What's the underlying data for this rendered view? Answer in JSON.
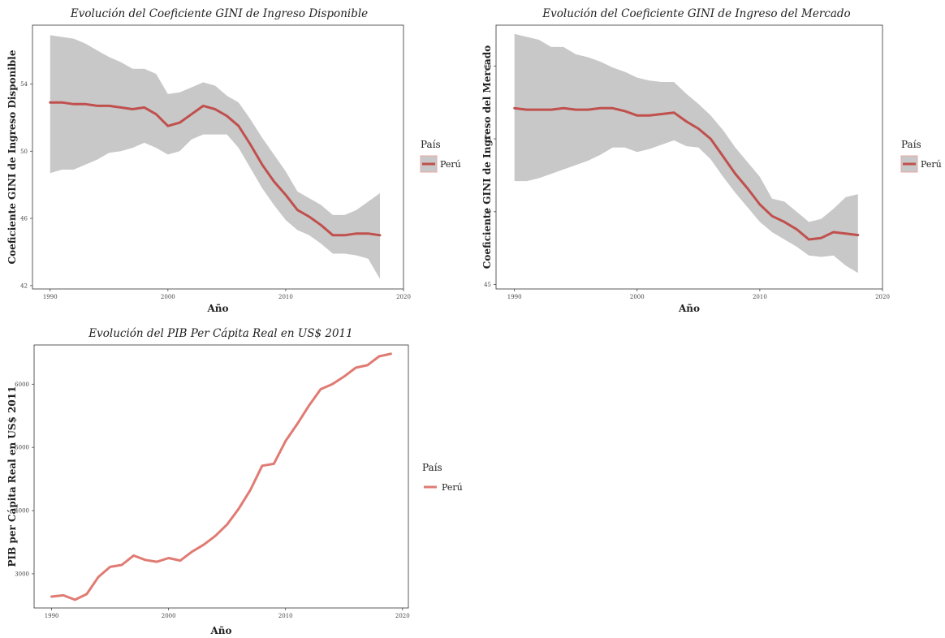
{
  "chart_data": [
    {
      "type": "area",
      "title": "Evolución del Coeficiente GINI de Ingreso Disponible",
      "xlabel": "Año",
      "ylabel": "Coeficiente GINI de Ingreso Disponible",
      "xlim": [
        1988.5,
        2020
      ],
      "ylim": [
        41.8,
        57.5
      ],
      "xticks": [
        1990,
        2000,
        2010,
        2020
      ],
      "yticks": [
        42,
        46,
        50,
        54
      ],
      "grid": false,
      "legend": {
        "title": "País",
        "position": "right"
      },
      "x": [
        1990,
        1991,
        1992,
        1993,
        1994,
        1995,
        1996,
        1997,
        1998,
        1999,
        2000,
        2001,
        2002,
        2003,
        2004,
        2005,
        2006,
        2007,
        2008,
        2009,
        2010,
        2011,
        2012,
        2013,
        2014,
        2015,
        2016,
        2017,
        2018
      ],
      "series": [
        {
          "name": "Perú",
          "color": "#c0504d",
          "values": [
            52.9,
            52.9,
            52.8,
            52.8,
            52.7,
            52.7,
            52.6,
            52.5,
            52.6,
            52.2,
            51.5,
            51.7,
            52.2,
            52.7,
            52.5,
            52.1,
            51.5,
            50.4,
            49.2,
            48.2,
            47.4,
            46.5,
            46.1,
            45.6,
            45.0,
            45.0,
            45.1,
            45.1,
            45.0
          ],
          "lower": [
            48.7,
            48.9,
            48.9,
            49.2,
            49.5,
            49.9,
            50.0,
            50.2,
            50.5,
            50.2,
            49.8,
            50.0,
            50.7,
            51.0,
            51.0,
            51.0,
            50.2,
            49.0,
            47.8,
            46.8,
            45.9,
            45.3,
            45.0,
            44.5,
            43.9,
            43.9,
            43.8,
            43.6,
            42.4
          ],
          "upper": [
            56.9,
            56.8,
            56.7,
            56.4,
            56.0,
            55.6,
            55.3,
            54.9,
            54.9,
            54.6,
            53.4,
            53.5,
            53.8,
            54.1,
            53.9,
            53.3,
            52.9,
            51.9,
            50.8,
            49.8,
            48.8,
            47.6,
            47.2,
            46.8,
            46.2,
            46.2,
            46.5,
            47.0,
            47.5
          ],
          "band_color": "#c8c8c8"
        }
      ]
    },
    {
      "type": "area",
      "title": "Evolución del Coeficiente GINI de Ingreso del Mercado",
      "xlabel": "Año",
      "ylabel": "Coeficiente GINI de Ingreso del Mercado",
      "xlim": [
        1988.5,
        2020
      ],
      "ylim": [
        44.7,
        62.8
      ],
      "xticks": [
        1990,
        2000,
        2010,
        2020
      ],
      "yticks": [
        45,
        50,
        55,
        60
      ],
      "grid": false,
      "legend": {
        "title": "País",
        "position": "right"
      },
      "x": [
        1990,
        1991,
        1992,
        1993,
        1994,
        1995,
        1996,
        1997,
        1998,
        1999,
        2000,
        2001,
        2002,
        2003,
        2004,
        2005,
        2006,
        2007,
        2008,
        2009,
        2010,
        2011,
        2012,
        2013,
        2014,
        2015,
        2016,
        2017,
        2018
      ],
      "series": [
        {
          "name": "Perú",
          "color": "#c0504d",
          "values": [
            57.1,
            57.0,
            57.0,
            57.0,
            57.1,
            57.0,
            57.0,
            57.1,
            57.1,
            56.9,
            56.6,
            56.6,
            56.7,
            56.8,
            56.2,
            55.7,
            55.0,
            53.8,
            52.6,
            51.6,
            50.5,
            49.7,
            49.3,
            48.8,
            48.1,
            48.2,
            48.6,
            48.5,
            48.4
          ],
          "lower": [
            52.1,
            52.1,
            52.3,
            52.6,
            52.9,
            53.2,
            53.5,
            53.9,
            54.4,
            54.4,
            54.1,
            54.3,
            54.6,
            54.9,
            54.5,
            54.4,
            53.6,
            52.4,
            51.3,
            50.3,
            49.3,
            48.6,
            48.1,
            47.6,
            47.0,
            46.9,
            47.0,
            46.3,
            45.8
          ],
          "upper": [
            62.2,
            62.0,
            61.8,
            61.3,
            61.3,
            60.8,
            60.6,
            60.3,
            59.9,
            59.6,
            59.2,
            59.0,
            58.9,
            58.9,
            58.1,
            57.4,
            56.6,
            55.6,
            54.4,
            53.4,
            52.4,
            50.9,
            50.7,
            50.0,
            49.3,
            49.5,
            50.2,
            51.0,
            51.2
          ],
          "band_color": "#c8c8c8"
        }
      ]
    },
    {
      "type": "line",
      "title": "Evolución del PIB Per Cápita Real en US$ 2011",
      "xlabel": "Año",
      "ylabel": "PIB per Cápita Real en US$ 2011",
      "xlim": [
        1988.5,
        2020.5
      ],
      "ylim": [
        2460,
        6620
      ],
      "xticks": [
        1990,
        2000,
        2010,
        2020
      ],
      "yticks": [
        3000,
        4000,
        5000,
        6000
      ],
      "grid": false,
      "legend": {
        "title": "País",
        "position": "right"
      },
      "x": [
        1990,
        1991,
        1992,
        1993,
        1994,
        1995,
        1996,
        1997,
        1998,
        1999,
        2000,
        2001,
        2002,
        2003,
        2004,
        2005,
        2006,
        2007,
        2008,
        2009,
        2010,
        2011,
        2012,
        2013,
        2014,
        2015,
        2016,
        2017,
        2018,
        2019
      ],
      "series": [
        {
          "name": "Perú",
          "color": "#e07b73",
          "values": [
            2640,
            2660,
            2590,
            2680,
            2950,
            3110,
            3140,
            3290,
            3220,
            3190,
            3250,
            3210,
            3350,
            3460,
            3600,
            3780,
            4030,
            4330,
            4710,
            4740,
            5100,
            5370,
            5660,
            5920,
            6000,
            6120,
            6260,
            6300,
            6440,
            6480
          ]
        }
      ]
    }
  ]
}
